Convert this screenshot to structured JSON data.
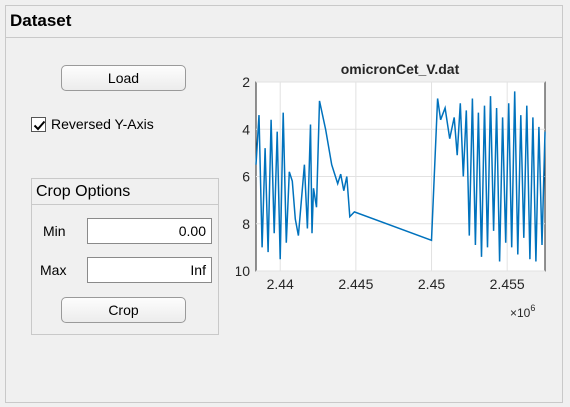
{
  "panel": {
    "title": "Dataset"
  },
  "load_button": {
    "label": "Load"
  },
  "reversed_checkbox": {
    "label": "Reversed Y-Axis",
    "checked": true
  },
  "crop_options": {
    "title": "Crop Options",
    "min_label": "Min",
    "min_value": "0.00",
    "max_label": "Max",
    "max_value": "Inf",
    "crop_label": "Crop"
  },
  "chart_data": {
    "type": "line",
    "title": "omicronCet_V.dat",
    "xlabel": "",
    "ylabel": "",
    "x_multiplier_label": "×10",
    "x_multiplier_exp": "6",
    "xlim": [
      2.4384,
      2.4575
    ],
    "ylim": [
      2,
      10
    ],
    "y_reversed": true,
    "grid": true,
    "x_ticks": [
      2.44,
      2.445,
      2.45,
      2.455
    ],
    "x_tick_labels": [
      "2.44",
      "2.445",
      "2.45",
      "2.455"
    ],
    "y_ticks": [
      2,
      4,
      6,
      8,
      10
    ],
    "y_tick_labels": [
      "2",
      "4",
      "6",
      "8",
      "10"
    ],
    "color": "#0072bd",
    "series": [
      {
        "x": [
          2.4384,
          2.4386,
          2.4388,
          2.439,
          2.4392,
          2.4394,
          2.4396,
          2.4398,
          2.44,
          2.4402,
          2.4404,
          2.4406,
          2.4408,
          2.441,
          2.4412,
          2.4416,
          2.4418,
          2.442,
          2.4421,
          2.4422,
          2.4424,
          2.4426,
          2.443,
          2.4434,
          2.4438,
          2.444,
          2.4442,
          2.4444,
          2.4446,
          2.4449,
          2.45,
          2.4504,
          2.4506,
          2.4509,
          2.4512,
          2.4515,
          2.4517,
          2.4519,
          2.4521,
          2.4523,
          2.4525,
          2.4527,
          2.4529,
          2.4531,
          2.4533,
          2.4535,
          2.4537,
          2.4539,
          2.4541,
          2.4543,
          2.4545,
          2.4547,
          2.4549,
          2.4551,
          2.4553,
          2.4555,
          2.4557,
          2.4559,
          2.4561,
          2.4563,
          2.4565,
          2.4567,
          2.4569,
          2.4571,
          2.4573,
          2.4575
        ],
        "y": [
          5.5,
          3.4,
          9.0,
          4.8,
          9.2,
          3.6,
          8.4,
          4.1,
          9.5,
          3.3,
          8.8,
          5.8,
          6.2,
          7.8,
          8.5,
          5.5,
          8.2,
          3.8,
          8.4,
          6.5,
          7.3,
          2.8,
          4.0,
          5.5,
          6.3,
          5.9,
          6.6,
          6.0,
          7.7,
          7.5,
          8.7,
          2.7,
          3.6,
          3.1,
          4.4,
          3.5,
          5.1,
          2.9,
          6.0,
          3.2,
          8.5,
          2.7,
          8.9,
          3.3,
          9.4,
          3.0,
          9.0,
          2.6,
          8.3,
          3.1,
          9.6,
          3.5,
          8.8,
          2.9,
          9.0,
          2.4,
          9.3,
          3.4,
          8.6,
          3.0,
          9.5,
          3.5,
          9.6,
          3.9,
          8.9,
          4.1
        ]
      }
    ]
  }
}
